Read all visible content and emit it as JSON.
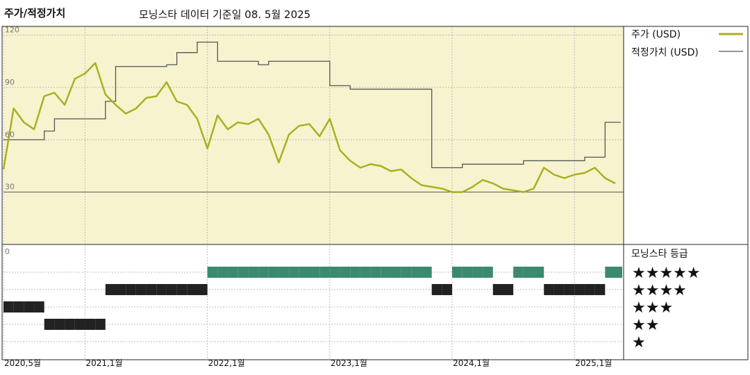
{
  "header": {
    "title": "주가/적정가치",
    "subtitle": "모닝스타 데이터 기준일 08. 5월 2025"
  },
  "legend": {
    "price_label": "주가 (USD)",
    "fair_label": "적정가치 (USD)",
    "price_color": "#a8b020",
    "fair_color": "#555555"
  },
  "rating_panel": {
    "title": "모닝스타 등급",
    "five": "★★★★★",
    "four": "★★★★",
    "three": "★★★",
    "two": "★★",
    "one": "★",
    "five_color": "#3a8a6e",
    "other_color": "#222222"
  },
  "chart_data": {
    "type": "line",
    "ylim": [
      0,
      125
    ],
    "yticks": [
      "120",
      "90",
      "60",
      "30",
      "0"
    ],
    "ytick_values": [
      120,
      90,
      60,
      30,
      0
    ],
    "xlim": [
      "2020-05",
      "2025-05"
    ],
    "xticks": [
      "2020,5월",
      "2021,1월",
      "2022,1월",
      "2023,1월",
      "2024,1월",
      "2025,1월"
    ],
    "xtick_values": [
      "2020-05",
      "2021-01",
      "2022-01",
      "2023-01",
      "2024-01",
      "2025-01"
    ],
    "plot_background": "#f7f3cf",
    "series": [
      {
        "name": "주가 (USD)",
        "x": [
          "2020-05",
          "2020-06",
          "2020-07",
          "2020-08",
          "2020-09",
          "2020-10",
          "2020-11",
          "2020-12",
          "2021-01",
          "2021-02",
          "2021-03",
          "2021-04",
          "2021-05",
          "2021-06",
          "2021-07",
          "2021-08",
          "2021-09",
          "2021-10",
          "2021-11",
          "2021-12",
          "2022-01",
          "2022-02",
          "2022-03",
          "2022-04",
          "2022-05",
          "2022-06",
          "2022-07",
          "2022-08",
          "2022-09",
          "2022-10",
          "2022-11",
          "2022-12",
          "2023-01",
          "2023-02",
          "2023-03",
          "2023-04",
          "2023-05",
          "2023-06",
          "2023-07",
          "2023-08",
          "2023-09",
          "2023-10",
          "2023-11",
          "2023-12",
          "2024-01",
          "2024-02",
          "2024-03",
          "2024-04",
          "2024-05",
          "2024-06",
          "2024-07",
          "2024-08",
          "2024-09",
          "2024-10",
          "2024-11",
          "2024-12",
          "2025-01",
          "2025-02",
          "2025-03",
          "2025-04",
          "2025-05"
        ],
        "values": [
          43,
          78,
          70,
          66,
          85,
          87,
          80,
          95,
          98,
          104,
          86,
          80,
          75,
          78,
          84,
          85,
          93,
          82,
          80,
          72,
          55,
          74,
          66,
          70,
          69,
          72,
          63,
          47,
          63,
          68,
          69,
          62,
          72,
          54,
          48,
          44,
          46,
          45,
          42,
          43,
          38,
          34,
          33,
          32,
          30,
          30,
          33,
          37,
          35,
          32,
          31,
          30,
          32,
          44,
          40,
          38,
          40,
          41,
          44,
          38,
          35
        ]
      },
      {
        "name": "적정가치 (USD)",
        "x": [
          "2020-05",
          "2020-06",
          "2020-07",
          "2020-08",
          "2020-09",
          "2020-10",
          "2020-11",
          "2020-12",
          "2021-01",
          "2021-02",
          "2021-03",
          "2021-04",
          "2021-05",
          "2021-06",
          "2021-07",
          "2021-08",
          "2021-09",
          "2021-10",
          "2021-11",
          "2021-12",
          "2022-01",
          "2022-02",
          "2022-03",
          "2022-04",
          "2022-05",
          "2022-06",
          "2022-07",
          "2022-08",
          "2022-09",
          "2022-10",
          "2022-11",
          "2022-12",
          "2023-01",
          "2023-02",
          "2023-03",
          "2023-04",
          "2023-05",
          "2023-06",
          "2023-07",
          "2023-08",
          "2023-09",
          "2023-10",
          "2023-11",
          "2023-12",
          "2024-01",
          "2024-02",
          "2024-03",
          "2024-04",
          "2024-05",
          "2024-06",
          "2024-07",
          "2024-08",
          "2024-09",
          "2024-10",
          "2024-11",
          "2024-12",
          "2025-01",
          "2025-02",
          "2025-03",
          "2025-04",
          "2025-05"
        ],
        "values": [
          60,
          60,
          60,
          60,
          65,
          72,
          72,
          72,
          72,
          72,
          82,
          102,
          102,
          102,
          102,
          102,
          103,
          110,
          110,
          116,
          116,
          105,
          105,
          105,
          105,
          103,
          105,
          105,
          105,
          105,
          105,
          105,
          91,
          91,
          89,
          89,
          89,
          89,
          89,
          89,
          89,
          89,
          44,
          44,
          44,
          46,
          46,
          46,
          46,
          46,
          46,
          48,
          48,
          48,
          48,
          48,
          48,
          50,
          50,
          70,
          70
        ]
      }
    ],
    "ratings": {
      "levels": [
        "★★★★★",
        "★★★★",
        "★★★",
        "★★",
        "★"
      ],
      "x": [
        "2020-05",
        "2020-06",
        "2020-07",
        "2020-08",
        "2020-09",
        "2020-10",
        "2020-11",
        "2020-12",
        "2021-01",
        "2021-02",
        "2021-03",
        "2021-04",
        "2021-05",
        "2021-06",
        "2021-07",
        "2021-08",
        "2021-09",
        "2021-10",
        "2021-11",
        "2021-12",
        "2022-01",
        "2022-02",
        "2022-03",
        "2022-04",
        "2022-05",
        "2022-06",
        "2022-07",
        "2022-08",
        "2022-09",
        "2022-10",
        "2022-11",
        "2022-12",
        "2023-01",
        "2023-02",
        "2023-03",
        "2023-04",
        "2023-05",
        "2023-06",
        "2023-07",
        "2023-08",
        "2023-09",
        "2023-10",
        "2023-11",
        "2023-12",
        "2024-01",
        "2024-02",
        "2024-03",
        "2024-04",
        "2024-05",
        "2024-06",
        "2024-07",
        "2024-08",
        "2024-09",
        "2024-10",
        "2024-11",
        "2024-12",
        "2025-01",
        "2025-02",
        "2025-03",
        "2025-04",
        "2025-05"
      ],
      "stars": [
        3,
        3,
        3,
        3,
        2,
        2,
        2,
        2,
        2,
        2,
        4,
        4,
        4,
        4,
        4,
        4,
        4,
        4,
        4,
        4,
        5,
        5,
        5,
        5,
        5,
        5,
        5,
        5,
        5,
        5,
        5,
        5,
        5,
        5,
        5,
        5,
        5,
        5,
        5,
        5,
        5,
        5,
        4,
        4,
        5,
        5,
        5,
        5,
        4,
        4,
        5,
        5,
        5,
        4,
        4,
        4,
        4,
        4,
        4,
        5,
        5
      ]
    }
  }
}
